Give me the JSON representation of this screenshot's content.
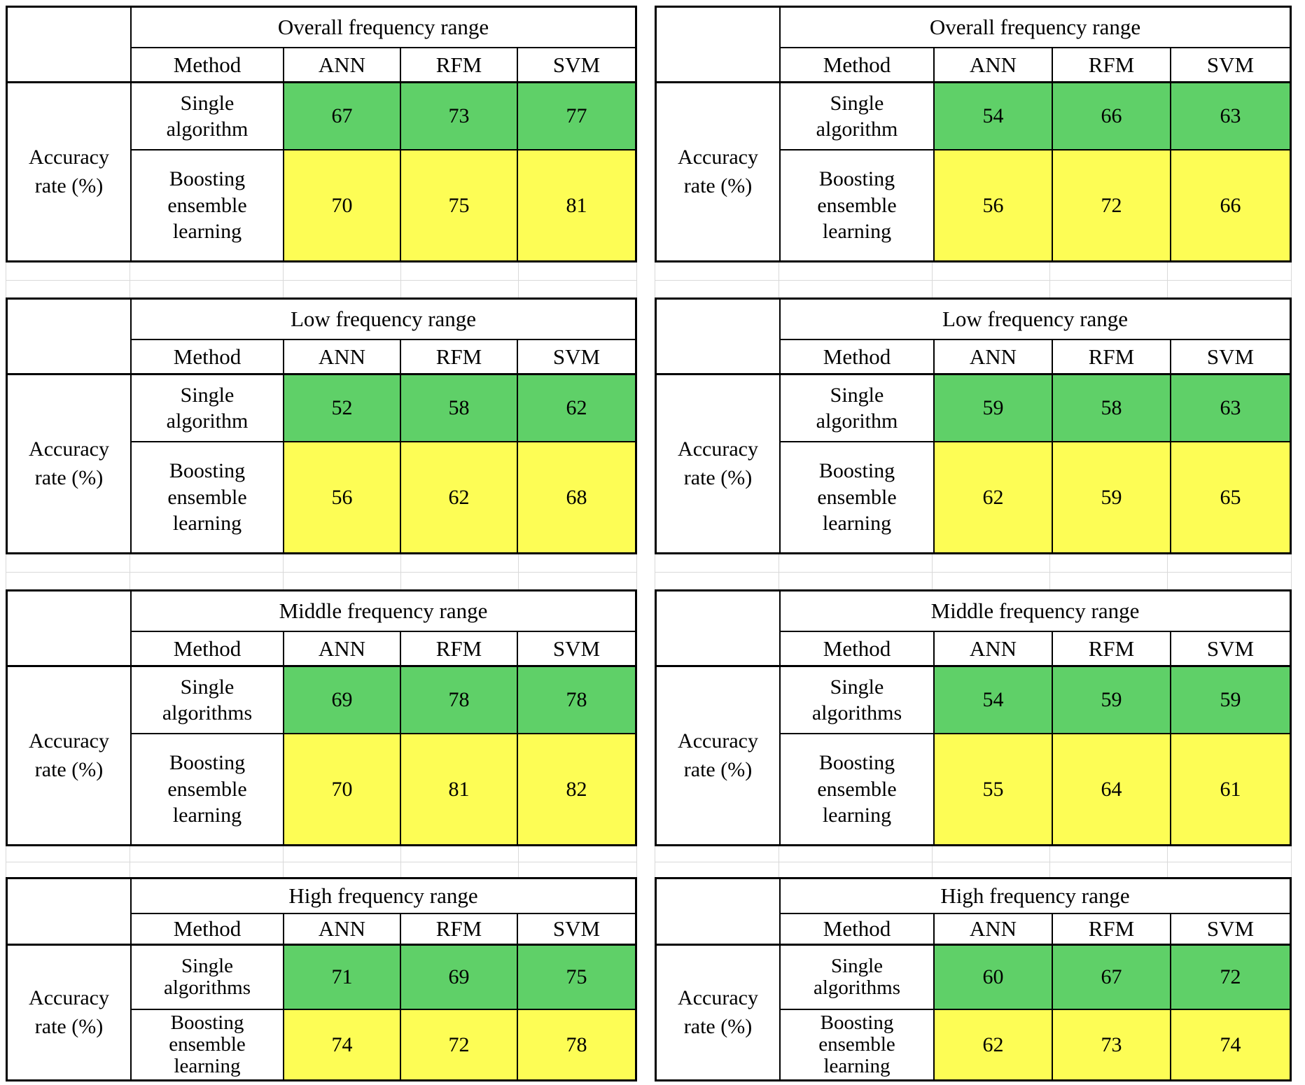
{
  "labels": {
    "method": "Method",
    "accuracy_line1": "Accuracy",
    "accuracy_line2": "rate (%)",
    "row_header": "Accuracy rate (%)"
  },
  "colors": {
    "single_row_green": "#5fd068",
    "boosting_row_yellow": "#fdfd55",
    "table_border": "#000000",
    "background_gridline_gray": "#d9d9d9"
  },
  "chart_data": [
    {
      "type": "table",
      "panel": "left-1",
      "title": "Overall frequency range",
      "row_header": "Accuracy rate (%)",
      "columns": [
        "ANN",
        "RFM",
        "SVM"
      ],
      "rows": [
        {
          "label": "Single algorithm",
          "values": [
            67,
            73,
            77
          ],
          "color": "green"
        },
        {
          "label": "Boosting ensemble learning",
          "values": [
            70,
            75,
            81
          ],
          "color": "yellow"
        }
      ]
    },
    {
      "type": "table",
      "panel": "left-2",
      "title": "Low frequency range",
      "row_header": "Accuracy rate (%)",
      "columns": [
        "ANN",
        "RFM",
        "SVM"
      ],
      "rows": [
        {
          "label": "Single algorithm",
          "values": [
            52,
            58,
            62
          ],
          "color": "green"
        },
        {
          "label": "Boosting ensemble learning",
          "values": [
            56,
            62,
            68
          ],
          "color": "yellow"
        }
      ]
    },
    {
      "type": "table",
      "panel": "left-3",
      "title": "Middle frequency range",
      "row_header": "Accuracy rate (%)",
      "columns": [
        "ANN",
        "RFM",
        "SVM"
      ],
      "rows": [
        {
          "label": "Single algorithms",
          "values": [
            69,
            78,
            78
          ],
          "color": "green"
        },
        {
          "label": "Boosting ensemble learning",
          "values": [
            70,
            81,
            82
          ],
          "color": "yellow"
        }
      ]
    },
    {
      "type": "table",
      "panel": "left-4",
      "title": "High frequency range",
      "row_header": "Accuracy rate (%)",
      "columns": [
        "ANN",
        "RFM",
        "SVM"
      ],
      "rows": [
        {
          "label": "Single algorithms",
          "values": [
            71,
            69,
            75
          ],
          "color": "green"
        },
        {
          "label": "Boosting ensemble learning",
          "values": [
            74,
            72,
            78
          ],
          "color": "yellow"
        }
      ]
    },
    {
      "type": "table",
      "panel": "right-1",
      "title": "Overall frequency range",
      "row_header": "Accuracy rate (%)",
      "columns": [
        "ANN",
        "RFM",
        "SVM"
      ],
      "rows": [
        {
          "label": "Single algorithm",
          "values": [
            54,
            66,
            63
          ],
          "color": "green"
        },
        {
          "label": "Boosting ensemble learning",
          "values": [
            56,
            72,
            66
          ],
          "color": "yellow"
        }
      ]
    },
    {
      "type": "table",
      "panel": "right-2",
      "title": "Low frequency range",
      "row_header": "Accuracy rate (%)",
      "columns": [
        "ANN",
        "RFM",
        "SVM"
      ],
      "rows": [
        {
          "label": "Single algorithm",
          "values": [
            59,
            58,
            63
          ],
          "color": "green"
        },
        {
          "label": "Boosting ensemble learning",
          "values": [
            62,
            59,
            65
          ],
          "color": "yellow"
        }
      ]
    },
    {
      "type": "table",
      "panel": "right-3",
      "title": "Middle frequency range",
      "row_header": "Accuracy rate (%)",
      "columns": [
        "ANN",
        "RFM",
        "SVM"
      ],
      "rows": [
        {
          "label": "Single algorithms",
          "values": [
            54,
            59,
            59
          ],
          "color": "green"
        },
        {
          "label": "Boosting ensemble learning",
          "values": [
            55,
            64,
            61
          ],
          "color": "yellow"
        }
      ]
    },
    {
      "type": "table",
      "panel": "right-4",
      "title": "High frequency range",
      "row_header": "Accuracy rate (%)",
      "columns": [
        "ANN",
        "RFM",
        "SVM"
      ],
      "rows": [
        {
          "label": "Single algorithms",
          "values": [
            60,
            67,
            72
          ],
          "color": "green"
        },
        {
          "label": "Boosting ensemble learning",
          "values": [
            62,
            73,
            74
          ],
          "color": "yellow"
        }
      ]
    }
  ]
}
